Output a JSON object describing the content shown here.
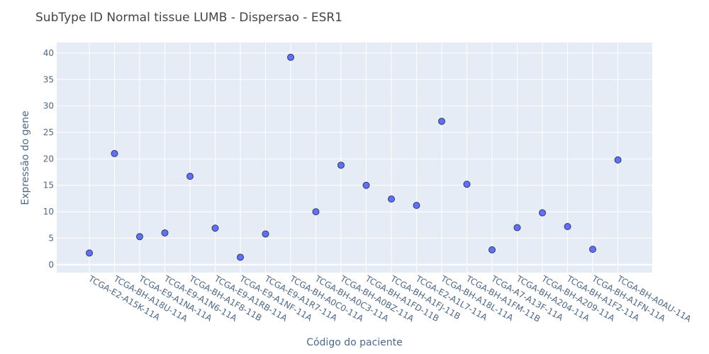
{
  "chart_data": {
    "type": "scatter",
    "title": "SubType ID Normal tissue LUMB - Dispersao - ESR1",
    "xlabel": "Código do paciente",
    "ylabel": "Expressão do gene",
    "ylim": [
      -1.5,
      42
    ],
    "yticks": [
      0,
      5,
      10,
      15,
      20,
      25,
      30,
      35,
      40
    ],
    "grid": true,
    "marker_color": "#636efa",
    "plot_bg": "#e5ecf6",
    "categories": [
      "TCGA-E2-A15K-11A",
      "TCGA-BH-A18U-11A",
      "TCGA-E9-A1NA-11A",
      "TCGA-E9-A1N6-11A",
      "TCGA-BH-A1F8-11B",
      "TCGA-E9-A1RB-11A",
      "TCGA-E9-A1NF-11A",
      "TCGA-E9-A1R7-11A",
      "TCGA-BH-A0C0-11A",
      "TCGA-BH-A0C3-11A",
      "TCGA-BH-A0BZ-11A",
      "TCGA-BH-A1FD-11B",
      "TCGA-BH-A1FJ-11B",
      "TCGA-E2-A1L7-11A",
      "TCGA-BH-A18L-11A",
      "TCGA-BH-A1FM-11B",
      "TCGA-A7-A13F-11A",
      "TCGA-BH-A204-11A",
      "TCGA-BH-A209-11A",
      "TCGA-BH-A1F2-11A",
      "TCGA-BH-A1FN-11A",
      "TCGA-BH-A0AU-11A"
    ],
    "values": [
      2.2,
      21.0,
      5.3,
      6.0,
      16.7,
      6.9,
      1.4,
      5.8,
      39.2,
      10.0,
      18.8,
      15.0,
      12.4,
      11.2,
      27.1,
      15.2,
      2.8,
      7.0,
      9.8,
      7.2,
      2.9,
      19.8
    ]
  }
}
